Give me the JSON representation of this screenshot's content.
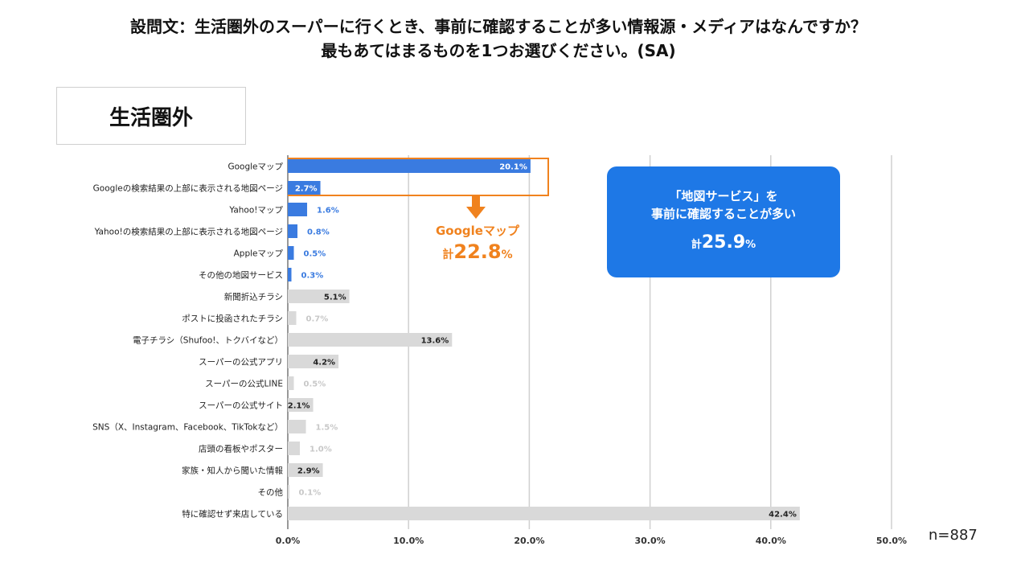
{
  "question": {
    "line1": "設問文：生活圏外のスーパーに行くとき、事前に確認することが多い情報源・メディアはなんですか？",
    "line2": "最もあてはまるものを1つお選びください。(SA)"
  },
  "segment_label": "生活圏外",
  "google_callout": {
    "title": "Googleマップ",
    "prefix": "計",
    "value": "22.8",
    "unit": "%",
    "color": "#f0821e"
  },
  "map_callout": {
    "line1": "「地図サービス」を",
    "line2": "事前に確認することが多い",
    "prefix": "計",
    "value": "25.9",
    "unit": "%",
    "color": "#1e78e6"
  },
  "n_label": "n=887",
  "colors": {
    "map_bar": "#3a7be0",
    "other_bar": "#d9d9d9",
    "bracket": "#f0821e",
    "grid": "#d0d0d0"
  },
  "chart_data": {
    "type": "bar",
    "orientation": "horizontal",
    "categories": [
      "Googleマップ",
      "Googleの検索結果の上部に表示される地図ページ",
      "Yahoo!マップ",
      "Yahoo!の検索結果の上部に表示される地図ページ",
      "Appleマップ",
      "その他の地図サービス",
      "新聞折込チラシ",
      "ポストに投函されたチラシ",
      "電子チラシ（Shufoo!、トクバイなど）",
      "スーパーの公式アプリ",
      "スーパーの公式LINE",
      "スーパーの公式サイト",
      "SNS（X、Instagram、Facebook、TikTokなど）",
      "店頭の看板やポスター",
      "家族・知人から聞いた情報",
      "その他",
      "特に確認せず来店している"
    ],
    "values": [
      20.1,
      2.7,
      1.6,
      0.8,
      0.5,
      0.3,
      5.1,
      0.7,
      13.6,
      4.2,
      0.5,
      2.1,
      1.5,
      1.0,
      2.9,
      0.1,
      42.4
    ],
    "value_labels": [
      "20.1%",
      "2.7%",
      "1.6%",
      "0.8%",
      "0.5%",
      "0.3%",
      "5.1%",
      "0.7%",
      "13.6%",
      "4.2%",
      "0.5%",
      "2.1%",
      "1.5%",
      "1.0%",
      "2.9%",
      "0.1%",
      "42.4%"
    ],
    "map_service": [
      true,
      true,
      true,
      true,
      true,
      true,
      false,
      false,
      false,
      false,
      false,
      false,
      false,
      false,
      false,
      false,
      false
    ],
    "xlim": [
      0,
      50
    ],
    "xticks": [
      "0.0%",
      "10.0%",
      "20.0%",
      "30.0%",
      "40.0%",
      "50.0%"
    ],
    "grid": true
  }
}
